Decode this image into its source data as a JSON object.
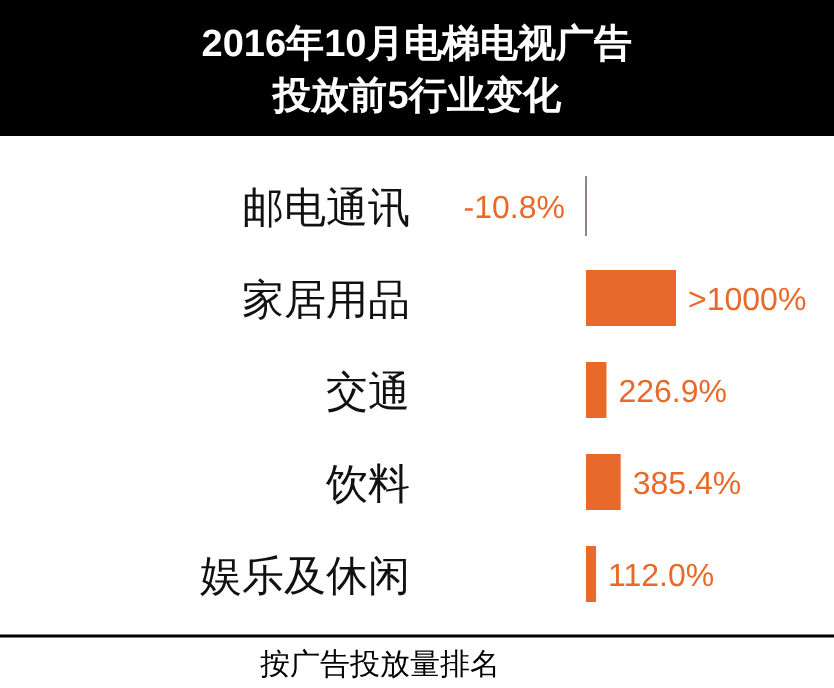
{
  "chart_data": {
    "type": "bar",
    "orientation": "horizontal",
    "title": "2016年10月电梯电视广告投放前5行业变化",
    "categories": [
      "邮电通讯",
      "家居用品",
      "交通",
      "饮料",
      "娱乐及休闲"
    ],
    "values": [
      -10.8,
      1000,
      226.9,
      385.4,
      112.0
    ],
    "value_labels": [
      "-10.8%",
      ">1000%",
      "226.9%",
      "385.4%",
      "112.0%"
    ],
    "color": "#e8692a",
    "annotations": [
      "按广告投放量排名"
    ]
  }
}
